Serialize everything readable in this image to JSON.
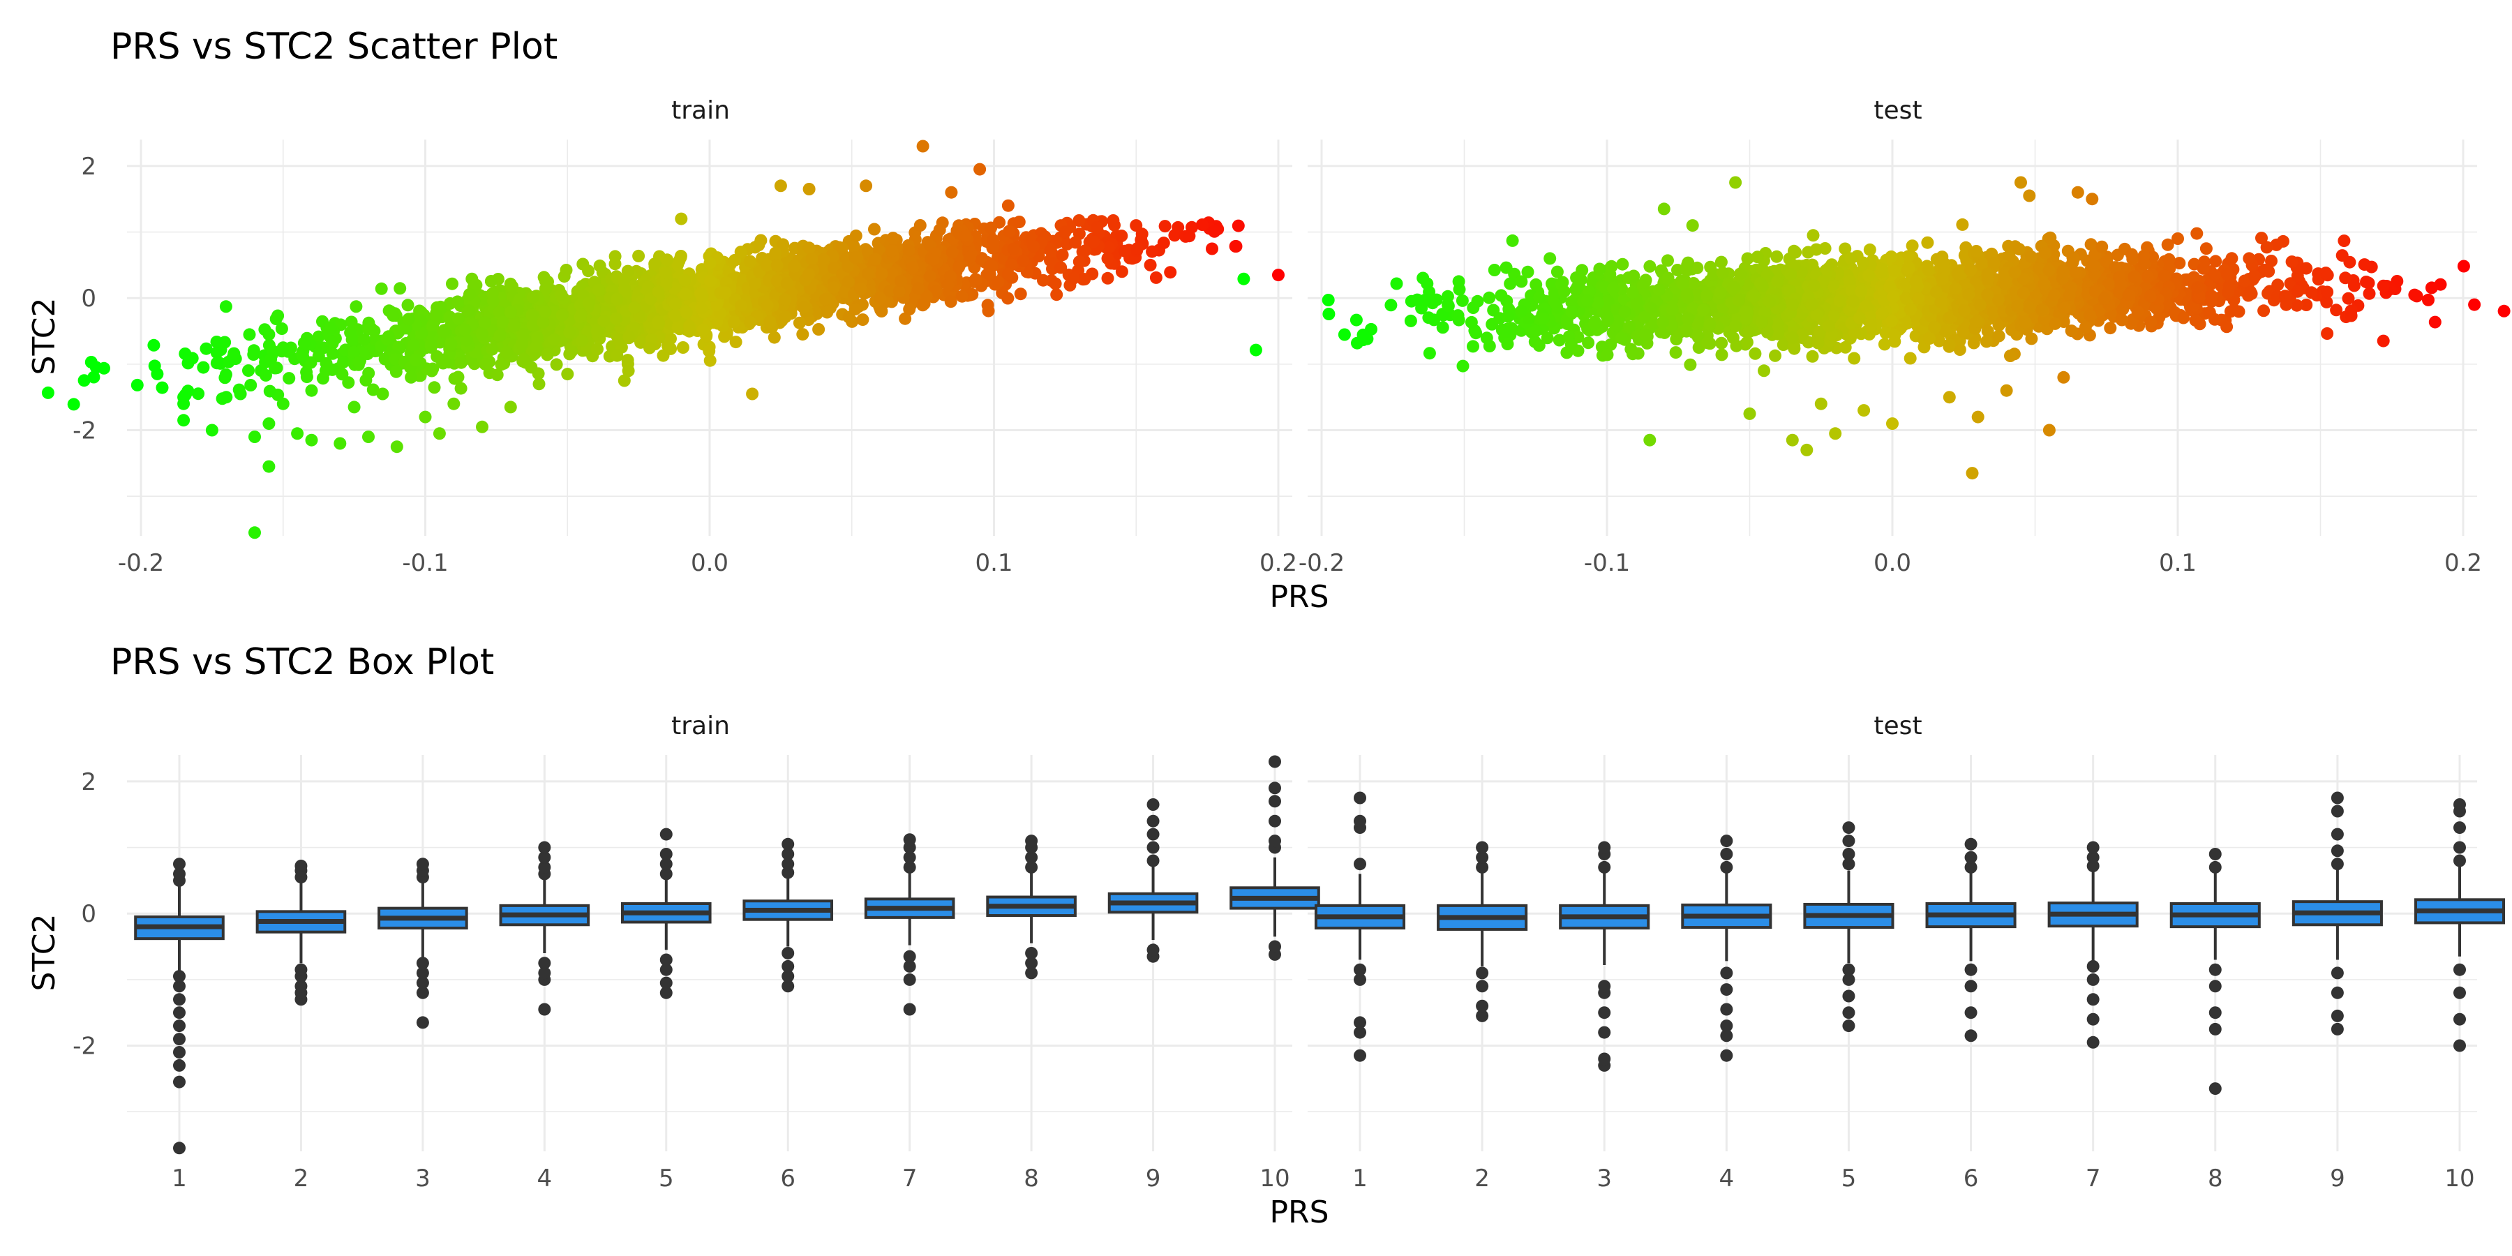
{
  "charts": [
    {
      "title": "PRS vs STC2 Scatter Plot",
      "xlabel": "PRS",
      "ylabel": "STC2",
      "facets": [
        "train",
        "test"
      ],
      "x_ticks": [
        "-0.2",
        "-0.1",
        "0.0",
        "0.1",
        "0.2"
      ],
      "y_ticks": [
        "-2",
        "0",
        "2"
      ]
    },
    {
      "title": "PRS vs STC2 Box Plot",
      "xlabel": "PRS",
      "ylabel": "STC2",
      "facets": [
        "train",
        "test"
      ],
      "x_ticks": [
        "1",
        "2",
        "3",
        "4",
        "5",
        "6",
        "7",
        "8",
        "9",
        "10"
      ],
      "y_ticks": [
        "-2",
        "0",
        "2"
      ]
    }
  ],
  "chart_data": [
    {
      "type": "scatter",
      "title": "PRS vs STC2 Scatter Plot",
      "xlabel": "PRS",
      "ylabel": "STC2",
      "xlim": [
        -0.2,
        0.2
      ],
      "ylim": [
        -3.6,
        2.4
      ],
      "color_scale": {
        "low": "#00ff00",
        "mid": "#b8b800",
        "high": "#ff0000",
        "by": "PRS"
      },
      "grid": true,
      "panels": [
        {
          "facet": "train",
          "trend": {
            "slope": 6.0,
            "intercept": 0.0,
            "spread": 0.28
          },
          "x_range": [
            -0.13,
            0.12
          ],
          "outliers": [
            {
              "x": 0.2,
              "y": 0.35
            },
            {
              "x": -0.16,
              "y": -3.55
            },
            {
              "x": -0.185,
              "y": -1.85
            },
            {
              "x": -0.185,
              "y": -1.6
            },
            {
              "x": -0.185,
              "y": -1.5
            },
            {
              "x": -0.175,
              "y": -2.0
            },
            {
              "x": -0.17,
              "y": -1.5
            },
            {
              "x": -0.165,
              "y": -1.45
            },
            {
              "x": -0.16,
              "y": -2.1
            },
            {
              "x": -0.155,
              "y": -2.55
            },
            {
              "x": -0.155,
              "y": -1.9
            },
            {
              "x": -0.15,
              "y": -1.6
            },
            {
              "x": -0.155,
              "y": -0.55
            },
            {
              "x": -0.15,
              "y": -0.75
            },
            {
              "x": -0.145,
              "y": -2.05
            },
            {
              "x": -0.14,
              "y": -2.15
            },
            {
              "x": -0.14,
              "y": -1.4
            },
            {
              "x": -0.135,
              "y": -1.1
            },
            {
              "x": -0.13,
              "y": -2.2
            },
            {
              "x": -0.125,
              "y": -1.65
            },
            {
              "x": -0.12,
              "y": -2.1
            },
            {
              "x": -0.115,
              "y": -1.45
            },
            {
              "x": -0.11,
              "y": -2.25
            },
            {
              "x": -0.105,
              "y": -1.2
            },
            {
              "x": -0.1,
              "y": -1.8
            },
            {
              "x": -0.095,
              "y": -2.05
            },
            {
              "x": -0.09,
              "y": -1.6
            },
            {
              "x": -0.08,
              "y": -1.95
            },
            {
              "x": -0.07,
              "y": -1.65
            },
            {
              "x": -0.06,
              "y": -1.3
            },
            {
              "x": -0.05,
              "y": -1.15
            },
            {
              "x": -0.03,
              "y": -1.25
            },
            {
              "x": 0.015,
              "y": -1.45
            },
            {
              "x": -0.01,
              "y": 1.2
            },
            {
              "x": 0.025,
              "y": 1.7
            },
            {
              "x": 0.035,
              "y": 1.65
            },
            {
              "x": 0.055,
              "y": 1.7
            },
            {
              "x": 0.075,
              "y": 2.3
            },
            {
              "x": 0.095,
              "y": 1.95
            },
            {
              "x": 0.085,
              "y": 1.6
            },
            {
              "x": 0.105,
              "y": 1.4
            },
            {
              "x": 0.125,
              "y": 1.0
            },
            {
              "x": 0.135,
              "y": 0.85
            },
            {
              "x": 0.145,
              "y": 0.4
            },
            {
              "x": 0.15,
              "y": 1.1
            },
            {
              "x": 0.155,
              "y": 0.5
            },
            {
              "x": 0.14,
              "y": 0.6
            },
            {
              "x": 0.13,
              "y": 0.55
            },
            {
              "x": 0.128,
              "y": 0.3
            },
            {
              "x": 0.14,
              "y": 0.3
            }
          ]
        },
        {
          "facet": "test",
          "trend": {
            "slope": 1.5,
            "intercept": 0.0,
            "spread": 0.3
          },
          "x_range": [
            -0.12,
            0.12
          ],
          "outliers": [
            {
              "x": -0.12,
              "y": 0.6
            },
            {
              "x": -0.13,
              "y": 0.25
            },
            {
              "x": -0.13,
              "y": -0.2
            },
            {
              "x": -0.125,
              "y": -0.5
            },
            {
              "x": -0.115,
              "y": 0.1
            },
            {
              "x": -0.085,
              "y": -2.15
            },
            {
              "x": -0.08,
              "y": 1.35
            },
            {
              "x": -0.07,
              "y": 1.1
            },
            {
              "x": -0.055,
              "y": 1.75
            },
            {
              "x": -0.05,
              "y": -1.75
            },
            {
              "x": -0.045,
              "y": -1.1
            },
            {
              "x": -0.035,
              "y": -2.15
            },
            {
              "x": -0.03,
              "y": -2.3
            },
            {
              "x": -0.025,
              "y": -1.6
            },
            {
              "x": -0.02,
              "y": -2.05
            },
            {
              "x": -0.01,
              "y": -1.7
            },
            {
              "x": 0.0,
              "y": -1.9
            },
            {
              "x": 0.02,
              "y": -1.5
            },
            {
              "x": 0.03,
              "y": -1.8
            },
            {
              "x": 0.028,
              "y": -2.65
            },
            {
              "x": 0.04,
              "y": -1.4
            },
            {
              "x": 0.045,
              "y": 1.75
            },
            {
              "x": 0.048,
              "y": 1.55
            },
            {
              "x": 0.065,
              "y": 1.6
            },
            {
              "x": 0.07,
              "y": 1.5
            },
            {
              "x": 0.055,
              "y": -2.0
            },
            {
              "x": 0.06,
              "y": -1.2
            },
            {
              "x": 0.1,
              "y": 0.9
            },
            {
              "x": 0.11,
              "y": 0.75
            },
            {
              "x": 0.125,
              "y": 0.6
            },
            {
              "x": 0.135,
              "y": 0.2
            },
            {
              "x": 0.14,
              "y": 0.55
            },
            {
              "x": 0.142,
              "y": 0.1
            },
            {
              "x": 0.145,
              "y": 0.45
            },
            {
              "x": 0.138,
              "y": -0.1
            }
          ]
        }
      ]
    },
    {
      "type": "box",
      "title": "PRS vs STC2 Box Plot",
      "xlabel": "PRS",
      "ylabel": "STC2",
      "categories": [
        "1",
        "2",
        "3",
        "4",
        "5",
        "6",
        "7",
        "8",
        "9",
        "10"
      ],
      "ylim": [
        -3.6,
        2.4
      ],
      "box_color": "#2b8ee8",
      "grid": true,
      "panels": [
        {
          "facet": "train",
          "boxes": [
            {
              "q1": -0.38,
              "median": -0.2,
              "q3": -0.05,
              "low": -0.9,
              "high": 0.45,
              "outliers": [
                -3.55,
                -2.55,
                -2.3,
                -2.1,
                -1.9,
                -1.7,
                -1.5,
                -1.3,
                -1.1,
                -0.95,
                0.5,
                0.6,
                0.75
              ]
            },
            {
              "q1": -0.28,
              "median": -0.12,
              "q3": 0.03,
              "low": -0.75,
              "high": 0.5,
              "outliers": [
                -1.3,
                -1.2,
                -1.1,
                -0.95,
                -0.85,
                0.55,
                0.65,
                0.72
              ]
            },
            {
              "q1": -0.22,
              "median": -0.07,
              "q3": 0.08,
              "low": -0.67,
              "high": 0.53,
              "outliers": [
                -1.65,
                -1.2,
                -1.05,
                -0.9,
                -0.75,
                0.55,
                0.65,
                0.75
              ]
            },
            {
              "q1": -0.17,
              "median": -0.02,
              "q3": 0.12,
              "low": -0.6,
              "high": 0.56,
              "outliers": [
                -1.45,
                -1.0,
                -0.9,
                -0.75,
                0.6,
                0.7,
                0.85,
                1.0
              ]
            },
            {
              "q1": -0.13,
              "median": 0.01,
              "q3": 0.15,
              "low": -0.55,
              "high": 0.57,
              "outliers": [
                -1.2,
                -1.05,
                -0.85,
                -0.7,
                0.6,
                0.75,
                0.9,
                1.2
              ]
            },
            {
              "q1": -0.09,
              "median": 0.05,
              "q3": 0.19,
              "low": -0.5,
              "high": 0.6,
              "outliers": [
                -1.1,
                -0.95,
                -0.8,
                -0.6,
                0.62,
                0.75,
                0.9,
                1.05
              ]
            },
            {
              "q1": -0.06,
              "median": 0.08,
              "q3": 0.22,
              "low": -0.48,
              "high": 0.63,
              "outliers": [
                -1.45,
                -1.0,
                -0.8,
                -0.65,
                0.7,
                0.85,
                1.0,
                1.12
              ]
            },
            {
              "q1": -0.03,
              "median": 0.11,
              "q3": 0.25,
              "low": -0.45,
              "high": 0.66,
              "outliers": [
                -0.9,
                -0.75,
                -0.6,
                0.7,
                0.85,
                1.0,
                1.1
              ]
            },
            {
              "q1": 0.02,
              "median": 0.16,
              "q3": 0.3,
              "low": -0.4,
              "high": 0.72,
              "outliers": [
                -0.65,
                -0.55,
                0.8,
                1.0,
                1.2,
                1.4,
                1.65
              ]
            },
            {
              "q1": 0.08,
              "median": 0.23,
              "q3": 0.39,
              "low": -0.35,
              "high": 0.85,
              "outliers": [
                -0.62,
                -0.5,
                1.0,
                1.1,
                1.4,
                1.7,
                1.9,
                2.3
              ]
            }
          ]
        },
        {
          "facet": "test",
          "boxes": [
            {
              "q1": -0.22,
              "median": -0.05,
              "q3": 0.12,
              "low": -0.7,
              "high": 0.6,
              "outliers": [
                -2.15,
                -1.8,
                -1.65,
                -1.0,
                -0.85,
                0.75,
                1.3,
                1.4,
                1.75
              ]
            },
            {
              "q1": -0.24,
              "median": -0.06,
              "q3": 0.12,
              "low": -0.8,
              "high": 0.65,
              "outliers": [
                -1.55,
                -1.4,
                -1.1,
                -0.9,
                0.7,
                0.85,
                1.0
              ]
            },
            {
              "q1": -0.22,
              "median": -0.05,
              "q3": 0.12,
              "low": -0.78,
              "high": 0.62,
              "outliers": [
                -2.3,
                -2.2,
                -1.8,
                -1.5,
                -1.2,
                -1.1,
                0.7,
                0.9,
                1.0
              ]
            },
            {
              "q1": -0.21,
              "median": -0.04,
              "q3": 0.13,
              "low": -0.72,
              "high": 0.62,
              "outliers": [
                -2.15,
                -1.85,
                -1.7,
                -1.45,
                -1.15,
                -0.9,
                0.7,
                0.9,
                1.1
              ]
            },
            {
              "q1": -0.21,
              "median": -0.03,
              "q3": 0.14,
              "low": -0.75,
              "high": 0.65,
              "outliers": [
                -1.7,
                -1.5,
                -1.25,
                -1.0,
                -0.85,
                0.75,
                0.9,
                1.1,
                1.3
              ]
            },
            {
              "q1": -0.2,
              "median": -0.02,
              "q3": 0.15,
              "low": -0.72,
              "high": 0.62,
              "outliers": [
                -1.85,
                -1.5,
                -1.1,
                -0.85,
                0.7,
                0.85,
                1.05
              ]
            },
            {
              "q1": -0.19,
              "median": -0.01,
              "q3": 0.16,
              "low": -0.72,
              "high": 0.65,
              "outliers": [
                -1.95,
                -1.6,
                -1.3,
                -1.0,
                -0.8,
                0.72,
                0.85,
                1.0
              ]
            },
            {
              "q1": -0.2,
              "median": -0.02,
              "q3": 0.15,
              "low": -0.7,
              "high": 0.62,
              "outliers": [
                -2.65,
                -1.75,
                -1.5,
                -1.1,
                -0.85,
                0.7,
                0.9
              ]
            },
            {
              "q1": -0.17,
              "median": 0.01,
              "q3": 0.18,
              "low": -0.7,
              "high": 0.68,
              "outliers": [
                -1.75,
                -1.55,
                -1.2,
                -0.9,
                0.75,
                0.95,
                1.2,
                1.55,
                1.75
              ]
            },
            {
              "q1": -0.14,
              "median": 0.04,
              "q3": 0.21,
              "low": -0.65,
              "high": 0.72,
              "outliers": [
                -2.0,
                -1.6,
                -1.2,
                -0.85,
                0.8,
                1.0,
                1.3,
                1.55,
                1.65
              ]
            }
          ]
        }
      ]
    }
  ]
}
